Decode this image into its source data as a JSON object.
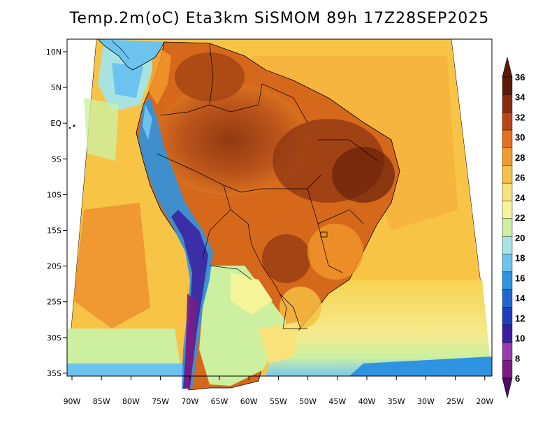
{
  "title": "Temp.2m(oC) Eta3km SiSMOM 89h 17Z28SEP2025",
  "map": {
    "lat_labels": [
      "10N",
      "5N",
      "EQ",
      "5S",
      "10S",
      "15S",
      "20S",
      "25S",
      "30S",
      "35S"
    ],
    "lon_labels": [
      "90W",
      "85W",
      "80W",
      "75W",
      "70W",
      "65W",
      "60W",
      "55W",
      "50W",
      "45W",
      "40W",
      "35W",
      "30W",
      "25W",
      "20W"
    ]
  },
  "colorbar": {
    "labels": [
      "6",
      "8",
      "10",
      "12",
      "14",
      "16",
      "18",
      "20",
      "22",
      "24",
      "26",
      "28",
      "30",
      "32",
      "34",
      "36"
    ],
    "colors": [
      "#7a1d86",
      "#9a3bb0",
      "#3b1d9f",
      "#1f3dbf",
      "#1f67cf",
      "#2e93e0",
      "#6cc3ef",
      "#a8e3e0",
      "#cdf0a0",
      "#f6f59a",
      "#f9e27a",
      "#f7c145",
      "#f39a2c",
      "#e46e1b",
      "#b94616",
      "#8a2a0e",
      "#5d1a07"
    ],
    "min_color": "#4b0f63",
    "max_color": "#5d1a07"
  }
}
